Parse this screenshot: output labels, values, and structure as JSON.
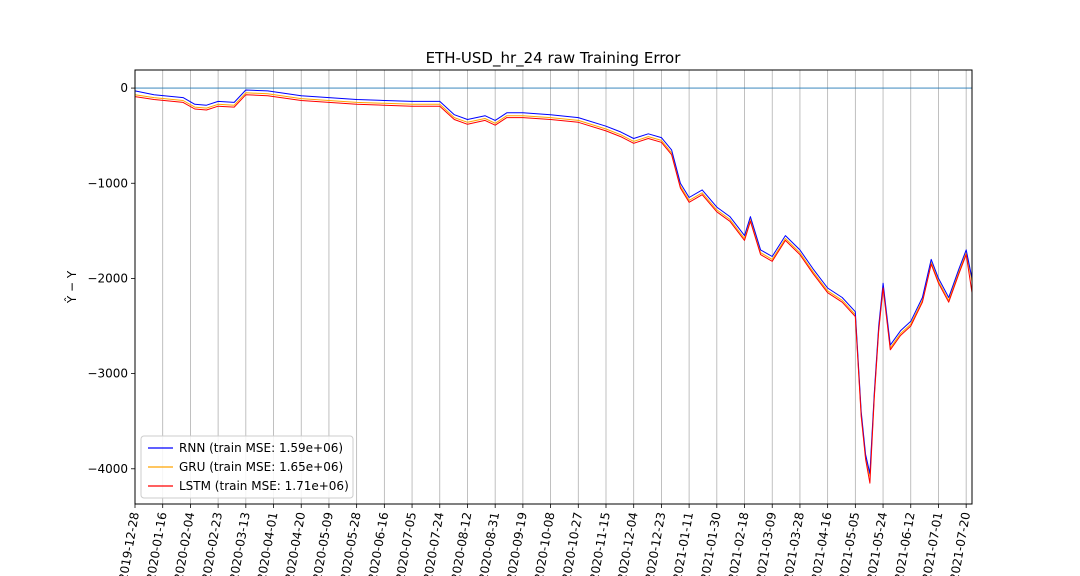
{
  "chart_data": {
    "type": "line",
    "title": "ETH-USD_hr_24 raw Training Error",
    "xlabel": "",
    "ylabel": "Ŷ − Y",
    "ylim": [
      -4370,
      190
    ],
    "yticks": [
      0,
      -1000,
      -2000,
      -3000,
      -4000
    ],
    "ytick_labels": [
      "0",
      "−1000",
      "−2000",
      "−3000",
      "−4000"
    ],
    "x_start": "2019-12-28",
    "x_end": "2021-07-24",
    "xtick_labels": [
      "2019-12-28",
      "2020-01-16",
      "2020-02-04",
      "2020-02-23",
      "2020-03-13",
      "2020-04-01",
      "2020-04-20",
      "2020-05-09",
      "2020-05-28",
      "2020-06-16",
      "2020-07-05",
      "2020-07-24",
      "2020-08-12",
      "2020-08-31",
      "2020-09-19",
      "2020-10-08",
      "2020-10-27",
      "2020-11-15",
      "2020-12-04",
      "2020-12-23",
      "2021-01-11",
      "2021-01-30",
      "2021-02-18",
      "2021-03-09",
      "2021-03-28",
      "2021-04-16",
      "2021-05-05",
      "2021-05-24",
      "2021-06-12",
      "2021-07-01",
      "2021-07-20"
    ],
    "grid": "vertical",
    "legend_position": "lower-left",
    "zero_line": 0,
    "colors": {
      "RNN": "#0000ff",
      "GRU": "#ffa500",
      "LSTM": "#ff0000",
      "zero_line": "#1f77b4",
      "grid": "#b0b0b0"
    },
    "series": [
      {
        "name": "RNN (train MSE: 1.59e+06)",
        "color": "#0000ff"
      },
      {
        "name": "GRU (train MSE: 1.65e+06)",
        "color": "#ffa500"
      },
      {
        "name": "LSTM (train MSE: 1.71e+06)",
        "color": "#ff0000"
      }
    ],
    "x": [
      "2019-12-28",
      "2020-01-10",
      "2020-01-30",
      "2020-02-07",
      "2020-02-15",
      "2020-02-23",
      "2020-03-05",
      "2020-03-13",
      "2020-03-28",
      "2020-04-20",
      "2020-05-09",
      "2020-05-28",
      "2020-06-16",
      "2020-07-05",
      "2020-07-24",
      "2020-08-03",
      "2020-08-12",
      "2020-08-24",
      "2020-08-31",
      "2020-09-08",
      "2020-09-19",
      "2020-10-08",
      "2020-10-27",
      "2020-11-15",
      "2020-11-25",
      "2020-12-04",
      "2020-12-14",
      "2020-12-23",
      "2020-12-30",
      "2021-01-05",
      "2021-01-11",
      "2021-01-20",
      "2021-01-30",
      "2021-02-08",
      "2021-02-18",
      "2021-02-22",
      "2021-03-01",
      "2021-03-09",
      "2021-03-18",
      "2021-03-28",
      "2021-04-06",
      "2021-04-16",
      "2021-04-26",
      "2021-05-05",
      "2021-05-09",
      "2021-05-12",
      "2021-05-15",
      "2021-05-18",
      "2021-05-21",
      "2021-05-24",
      "2021-05-29",
      "2021-06-05",
      "2021-06-12",
      "2021-06-20",
      "2021-06-26",
      "2021-07-01",
      "2021-07-08",
      "2021-07-15",
      "2021-07-20",
      "2021-07-24"
    ],
    "y_rnn": [
      -30,
      -70,
      -100,
      -170,
      -180,
      -140,
      -150,
      -20,
      -30,
      -80,
      -100,
      -120,
      -130,
      -140,
      -140,
      -280,
      -330,
      -290,
      -340,
      -260,
      -260,
      -280,
      -310,
      -400,
      -460,
      -530,
      -480,
      -520,
      -650,
      -1000,
      -1150,
      -1070,
      -1250,
      -1350,
      -1550,
      -1350,
      -1700,
      -1770,
      -1550,
      -1700,
      -1900,
      -2100,
      -2200,
      -2350,
      -3400,
      -3850,
      -4050,
      -3200,
      -2500,
      -2050,
      -2700,
      -2550,
      -2450,
      -2200,
      -1800,
      -2000,
      -2200,
      -1900,
      -1700,
      -2000
    ],
    "y_gru": [
      -70,
      -100,
      -130,
      -200,
      -210,
      -170,
      -180,
      -50,
      -60,
      -110,
      -130,
      -150,
      -160,
      -170,
      -170,
      -310,
      -360,
      -320,
      -370,
      -290,
      -290,
      -310,
      -340,
      -430,
      -490,
      -560,
      -510,
      -550,
      -680,
      -1030,
      -1180,
      -1100,
      -1280,
      -1380,
      -1580,
      -1380,
      -1730,
      -1800,
      -1580,
      -1730,
      -1930,
      -2130,
      -2230,
      -2380,
      -3430,
      -3880,
      -4080,
      -3230,
      -2530,
      -2080,
      -2730,
      -2580,
      -2480,
      -2230,
      -1830,
      -2030,
      -2230,
      -1930,
      -1730,
      -2030
    ],
    "y_lstm": [
      -90,
      -120,
      -150,
      -220,
      -230,
      -190,
      -200,
      -70,
      -80,
      -130,
      -150,
      -170,
      -180,
      -190,
      -190,
      -330,
      -380,
      -340,
      -390,
      -310,
      -310,
      -330,
      -360,
      -450,
      -510,
      -580,
      -530,
      -570,
      -700,
      -1050,
      -1200,
      -1120,
      -1300,
      -1400,
      -1600,
      -1400,
      -1750,
      -1820,
      -1600,
      -1750,
      -1950,
      -2150,
      -2250,
      -2400,
      -3450,
      -3900,
      -4150,
      -3250,
      -2550,
      -2100,
      -2750,
      -2600,
      -2500,
      -2250,
      -1850,
      -2050,
      -2250,
      -1950,
      -1750,
      -2150
    ]
  }
}
